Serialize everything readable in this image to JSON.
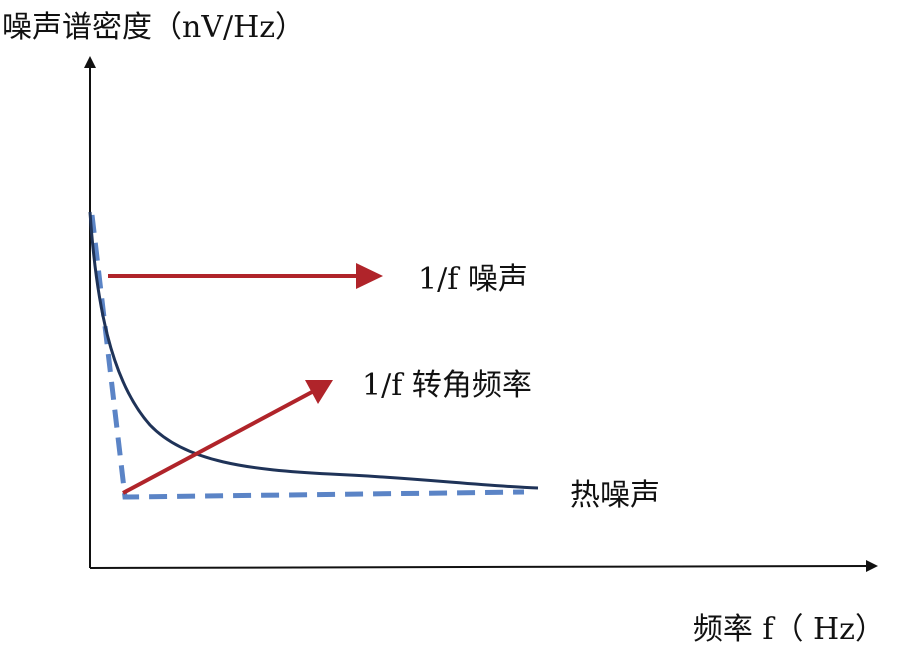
{
  "axes": {
    "y_label": "噪声谱密度（nV/Hz）",
    "x_label": "频率 f（ Hz）"
  },
  "annotations": {
    "flicker_noise": "1/f 噪声",
    "corner_frequency": "1/f 转角频率",
    "thermal_noise": "热噪声"
  },
  "colors": {
    "axis": "#111111",
    "noise_curve": "#1f3358",
    "asymptote": "#5b84c6",
    "arrow": "#b0242a"
  }
}
